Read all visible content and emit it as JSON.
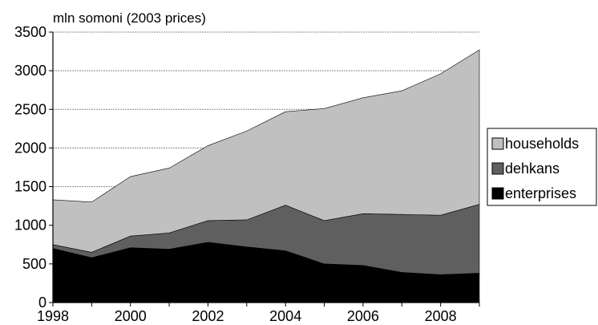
{
  "chart_data": {
    "type": "area",
    "stacked": true,
    "unit_label": "mln somoni (2003 prices)",
    "x": [
      1998,
      1999,
      2000,
      2001,
      2002,
      2003,
      2004,
      2005,
      2006,
      2007,
      2008,
      2009
    ],
    "x_ticks": [
      "1998",
      "2000",
      "2002",
      "2004",
      "2006",
      "2008"
    ],
    "y_ticks": [
      "0",
      "500",
      "1000",
      "1500",
      "2000",
      "2500",
      "3000",
      "3500"
    ],
    "xlim": [
      1998,
      2009
    ],
    "ylim": [
      0,
      3500
    ],
    "grid": true,
    "legend_position": "right",
    "series": [
      {
        "name": "enterprises",
        "color": "#000000",
        "values": [
          700,
          580,
          710,
          690,
          780,
          720,
          670,
          500,
          480,
          390,
          360,
          380
        ]
      },
      {
        "name": "dehkans",
        "color": "#5f5f5f",
        "values": [
          50,
          70,
          150,
          210,
          280,
          350,
          590,
          560,
          670,
          750,
          770,
          890
        ]
      },
      {
        "name": "households",
        "color": "#c0c0c0",
        "values": [
          580,
          650,
          770,
          840,
          970,
          1150,
          1210,
          1450,
          1500,
          1600,
          1830,
          2000
        ]
      }
    ]
  }
}
